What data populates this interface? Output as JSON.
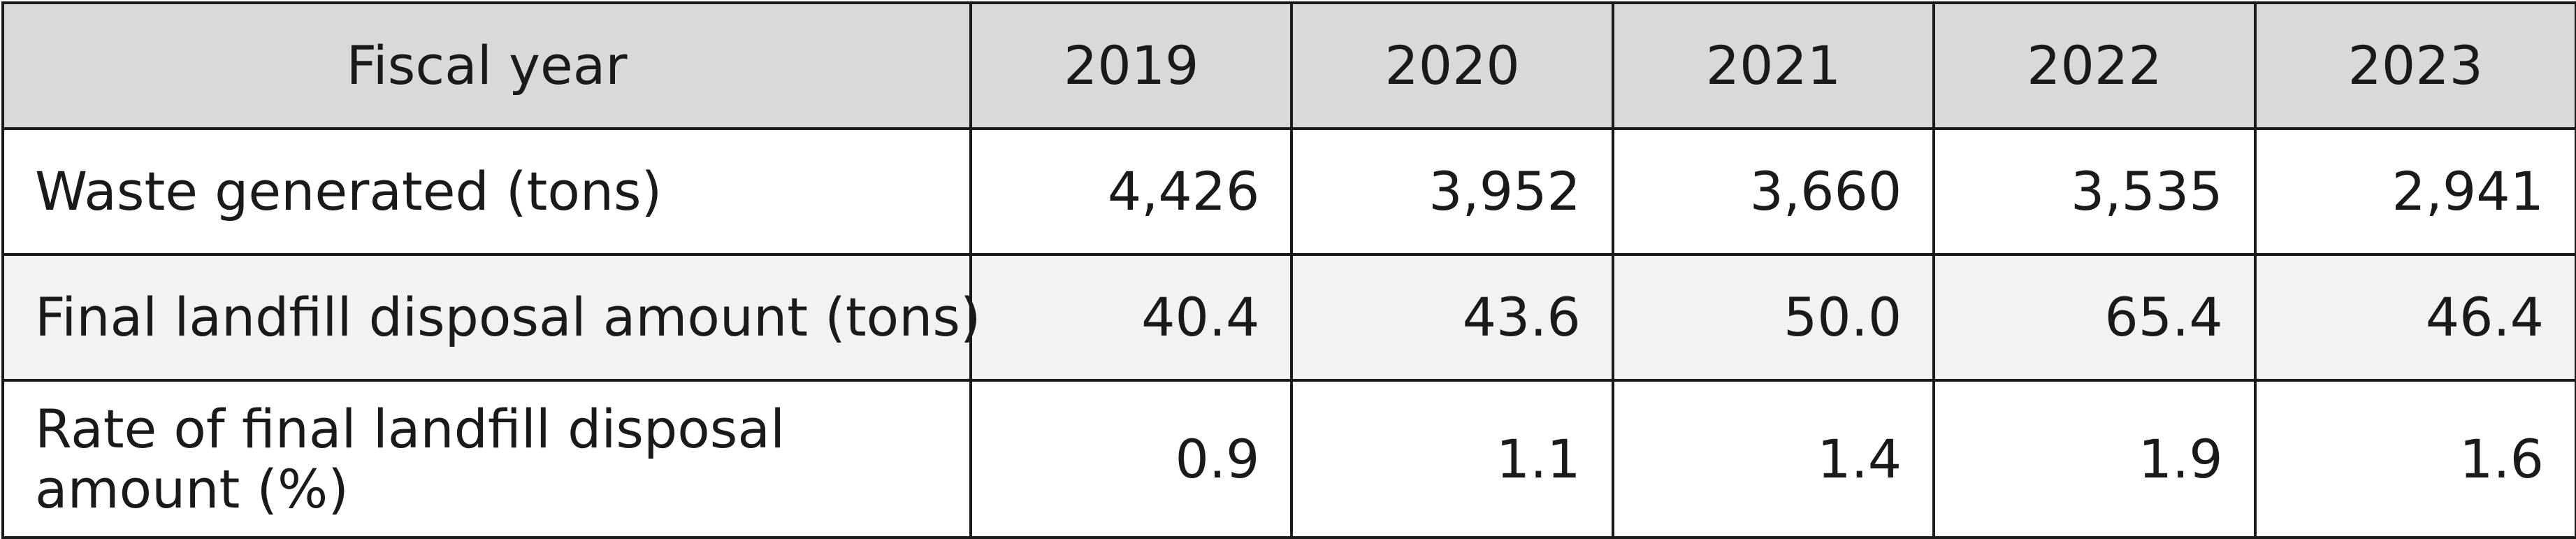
{
  "table": {
    "header": {
      "label": "Fiscal year",
      "years": [
        "2019",
        "2020",
        "2021",
        "2022",
        "2023"
      ]
    },
    "rows": [
      {
        "label": "Waste generated (tons)",
        "values": [
          "4,426",
          "3,952",
          "3,660",
          "3,535",
          "2,941"
        ]
      },
      {
        "label": "Final landfill disposal amount (tons)",
        "values": [
          "40.4",
          "43.6",
          "50.0",
          "65.4",
          "46.4"
        ]
      },
      {
        "label": "Rate of final landfill disposal amount (%)",
        "values": [
          "0.9",
          "1.1",
          "1.4",
          "1.9",
          "1.6"
        ]
      }
    ]
  },
  "colors": {
    "header_background": "#d9d9d9",
    "striped_row_background": "#f2f2f2",
    "border": "#1a1a1a"
  }
}
